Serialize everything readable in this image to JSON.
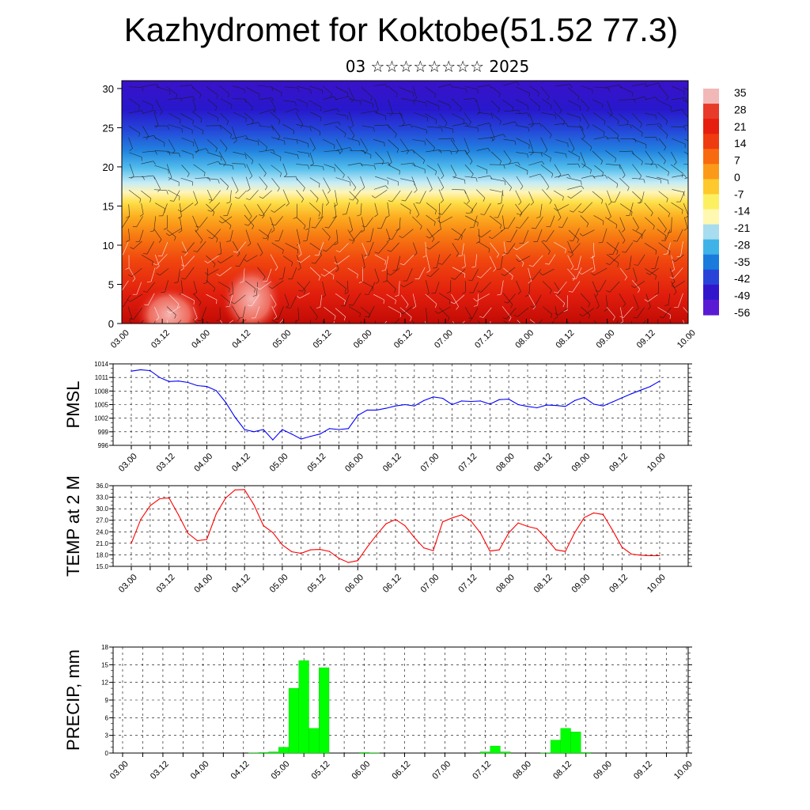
{
  "header": {
    "title": "Kazhydromet for Koktobe(51.52 77.3)",
    "subtitle": "03 ☆☆☆☆☆☆☆☆ 2025"
  },
  "time_ticks": [
    "03.00",
    "03.12",
    "04.00",
    "04.12",
    "05.00",
    "05.12",
    "06.00",
    "06.12",
    "07.00",
    "07.12",
    "08.00",
    "08.12",
    "09.00",
    "09.12",
    "10.00"
  ],
  "chart_data": [
    {
      "id": "cross_section",
      "type": "heatmap",
      "title": "Kazhydromet for Koktobe(51.52 77.3)",
      "subtitle": "03 ☆☆☆☆☆☆☆☆ 2025",
      "x_ticks": [
        "03.00",
        "03.12",
        "04.00",
        "04.12",
        "05.00",
        "05.12",
        "06.00",
        "06.12",
        "07.00",
        "07.12",
        "08.00",
        "08.12",
        "09.00",
        "09.12",
        "10.00"
      ],
      "y_ticks": [
        0,
        5,
        10,
        15,
        20,
        25,
        30
      ],
      "ylim": [
        0,
        31
      ],
      "colorbar_labels": [
        35,
        28,
        21,
        14,
        7,
        0,
        -7,
        -14,
        -21,
        -28,
        -35,
        -42,
        -49,
        -56
      ],
      "colorbar_colors": [
        "#f2b8b8",
        "#e83a2a",
        "#e61e0f",
        "#ef3b10",
        "#f86a10",
        "#fb9a18",
        "#fdc92c",
        "#fdf060",
        "#fff8b0",
        "#a8dcef",
        "#3fb3e8",
        "#1a7bdc",
        "#2844d8",
        "#3216cc",
        "#5a1ad4"
      ],
      "notes": "Temperature cross-section with wind barbs overlay"
    },
    {
      "id": "pmsl",
      "type": "line",
      "ylabel": "PMSL",
      "color": "#0000ff",
      "ylim": [
        996,
        1014
      ],
      "y_ticks": [
        996,
        999,
        1002,
        1005,
        1008,
        1011,
        1014
      ],
      "x_hours": [
        0,
        3,
        6,
        9,
        12,
        15,
        18,
        21,
        24,
        27,
        30,
        33,
        36,
        39,
        42,
        45,
        48,
        51,
        54,
        57,
        60,
        63,
        66,
        69,
        72,
        75,
        78,
        81,
        84,
        87,
        90,
        93,
        96,
        99,
        102,
        105,
        108,
        111,
        114,
        117,
        120,
        123,
        126,
        129,
        132,
        135,
        138,
        141,
        144,
        147,
        150,
        153,
        156,
        159,
        162,
        165,
        168
      ],
      "values": [
        1012.4,
        1012.7,
        1012.5,
        1011.0,
        1010.1,
        1010.2,
        1009.9,
        1009.2,
        1009.0,
        1008.1,
        1005.5,
        1002.2,
        999.5,
        999.0,
        999.5,
        997.2,
        999.5,
        998.5,
        997.4,
        998.0,
        998.5,
        999.7,
        999.5,
        999.7,
        1002.6,
        1003.8,
        1003.8,
        1004.2,
        1004.7,
        1005.0,
        1004.7,
        1005.9,
        1006.7,
        1006.4,
        1005.0,
        1005.8,
        1005.7,
        1005.8,
        1005.1,
        1006.1,
        1006.2,
        1005.0,
        1004.6,
        1004.3,
        1004.9,
        1004.8,
        1004.6,
        1005.9,
        1006.6,
        1005.1,
        1004.7,
        1005.6,
        1006.5,
        1007.4,
        1008.2,
        1009.0,
        1010.2
      ]
    },
    {
      "id": "t2m",
      "type": "line",
      "ylabel": "TEMP at 2 M",
      "color": "#ff0000",
      "ylim": [
        15,
        36
      ],
      "y_ticks": [
        "15.0",
        "18.0",
        "21.0",
        "24.0",
        "27.0",
        "30.0",
        "33.0",
        "36.0"
      ],
      "x_hours": [
        0,
        3,
        6,
        9,
        12,
        15,
        18,
        21,
        24,
        27,
        30,
        33,
        36,
        39,
        42,
        45,
        48,
        51,
        54,
        57,
        60,
        63,
        66,
        69,
        72,
        75,
        78,
        81,
        84,
        87,
        90,
        93,
        96,
        99,
        102,
        105,
        108,
        111,
        114,
        117,
        120,
        123,
        126,
        129,
        132,
        135,
        138,
        141,
        144,
        147,
        150,
        153,
        156,
        159,
        162,
        165,
        168
      ],
      "values": [
        21.0,
        27.2,
        30.8,
        32.6,
        32.8,
        28.4,
        23.6,
        21.7,
        22.0,
        28.7,
        32.8,
        34.9,
        35.0,
        31.0,
        25.6,
        23.8,
        20.6,
        18.8,
        18.4,
        19.3,
        19.4,
        18.9,
        17.1,
        16.0,
        16.5,
        20.0,
        23.2,
        26.1,
        27.2,
        25.6,
        22.5,
        19.8,
        19.1,
        26.6,
        27.6,
        28.4,
        26.8,
        23.7,
        19.0,
        19.3,
        23.7,
        26.3,
        25.4,
        24.8,
        22.2,
        19.3,
        18.9,
        23.8,
        27.7,
        28.9,
        28.5,
        24.4,
        20.0,
        18.2,
        17.9,
        17.8,
        17.8
      ]
    },
    {
      "id": "precip",
      "type": "bar",
      "ylabel": "PRECIP, mm",
      "color": "#00ff00",
      "ylim": [
        0,
        18
      ],
      "y_ticks": [
        0,
        3,
        6,
        9,
        12,
        15,
        18
      ],
      "x_hours": [
        39,
        42,
        45,
        48,
        51,
        54,
        57,
        60,
        72,
        75,
        108,
        111,
        114,
        126,
        129,
        132,
        135,
        138
      ],
      "values": [
        0.05,
        0.1,
        0.2,
        1.0,
        11.0,
        15.7,
        4.2,
        14.5,
        0.1,
        0.05,
        0.2,
        1.2,
        0.2,
        0.05,
        2.2,
        4.2,
        3.6,
        0.1
      ]
    }
  ]
}
